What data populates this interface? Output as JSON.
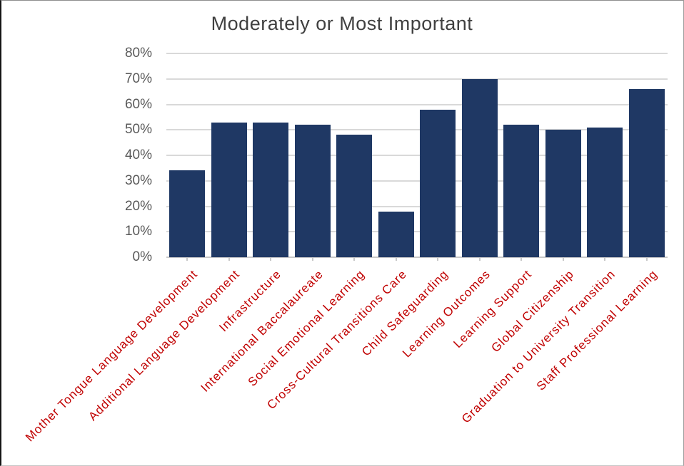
{
  "chart_data": {
    "type": "bar",
    "title": "Moderately or Most Important",
    "categories": [
      "Mother Tongue Language Development",
      "Additional Language Development",
      "Infrastructure",
      "International Baccalaureate",
      "Social Emotional Learning",
      "Cross-Cultural Transitions Care",
      "Child Safeguarding",
      "Learning Outcomes",
      "Learning Support",
      "Global Citizenship",
      "Graduation to University Transition",
      "Staff Professional Learning"
    ],
    "values": [
      34,
      53,
      53,
      52,
      48,
      18,
      58,
      70,
      52,
      50,
      51,
      66
    ],
    "value_suffix": "%",
    "xlabel": "",
    "ylabel": "",
    "ylim": [
      0,
      80
    ],
    "ytick_step": 10,
    "ytick_labels": [
      "0%",
      "10%",
      "20%",
      "30%",
      "40%",
      "50%",
      "60%",
      "70%",
      "80%"
    ],
    "grid": true,
    "legend_position": "none",
    "colors": {
      "bar": "#1f3864",
      "category_labels": "#c00000",
      "tick_labels": "#595959",
      "title": "#404040",
      "gridline": "#d9d9d9",
      "axis_line": "#c9c9c9"
    }
  }
}
